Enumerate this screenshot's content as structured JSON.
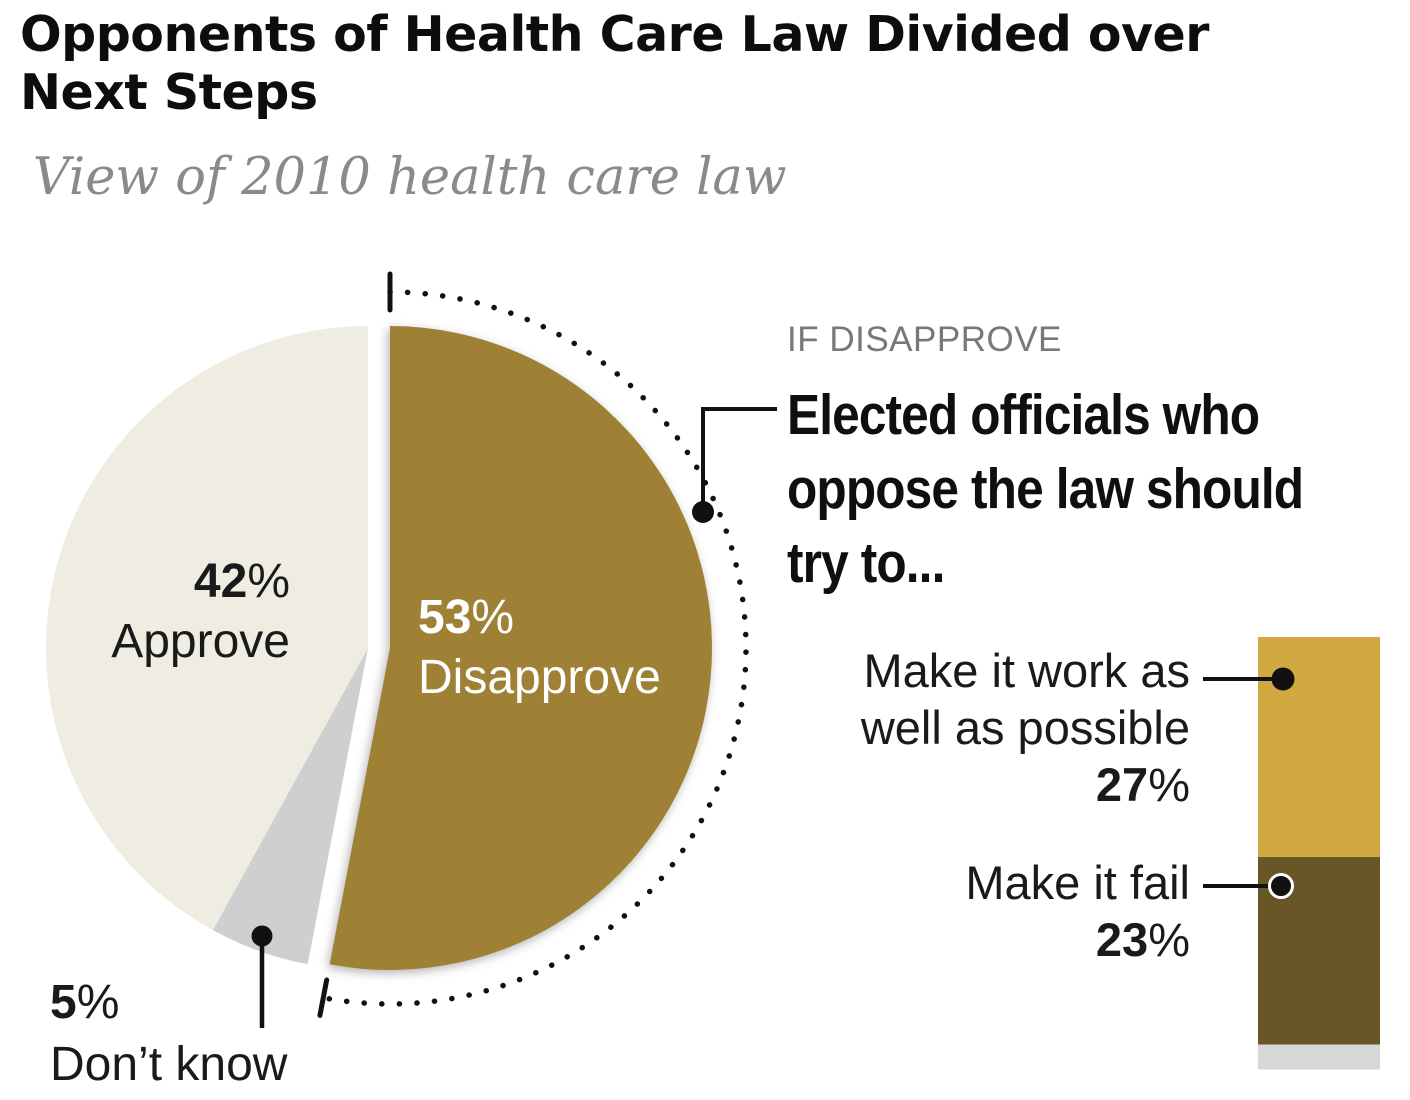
{
  "title_line1": "Opponents of Health Care Law Divided over",
  "title_line2": "Next Steps",
  "subtitle": "View of 2010 health care law",
  "pie_labels": {
    "disapprove_pct": "53%",
    "disapprove": "Disapprove",
    "approve_pct": "42%",
    "approve": "Approve",
    "dontknow_pct": "5%",
    "dontknow": "Don’t know"
  },
  "callout": {
    "kicker": "IF DISAPPROVE",
    "line1": "Elected officials who",
    "line2": "oppose the law should",
    "line3": "try to..."
  },
  "bar_labels": {
    "seg1_line1": "Make it work as",
    "seg1_line2": "well as possible",
    "seg1_pct": "27%",
    "seg2_line1": "Make it fail",
    "seg2_pct": "23%"
  },
  "colors": {
    "disapprove": "#9F8136",
    "approve": "#EFEDE2",
    "dontknow": "#CDD0CF",
    "bar_work": "#D2A940",
    "bar_fail": "#685626",
    "bar_rest": "#D6D7D6",
    "ink": "#111111",
    "kicker_gray": "#77787b",
    "subtitle_gray": "#8a8a8a"
  },
  "chart_data": [
    {
      "type": "pie",
      "title": "View of 2010 health care law",
      "slices": [
        {
          "label": "Disapprove",
          "value": 53,
          "color": "#9F8136",
          "exploded": true
        },
        {
          "label": "Don’t know",
          "value": 5,
          "color": "#CDD0CF"
        },
        {
          "label": "Approve",
          "value": 42,
          "color": "#EFEDE2"
        }
      ],
      "annotations": [
        "dotted arc traces the Disapprove slice",
        "start angle 12 o'clock, clockwise"
      ]
    },
    {
      "type": "stacked-bar",
      "kicker": "IF DISAPPROVE",
      "title": "Elected officials who oppose the law should try to...",
      "unit": "%",
      "segments": [
        {
          "label": "Make it work as well as possible",
          "value": 27,
          "color": "#D2A940"
        },
        {
          "label": "Make it fail",
          "value": 23,
          "color": "#685626"
        },
        {
          "label": "",
          "value": 3,
          "color": "#D6D7D6"
        }
      ]
    }
  ]
}
